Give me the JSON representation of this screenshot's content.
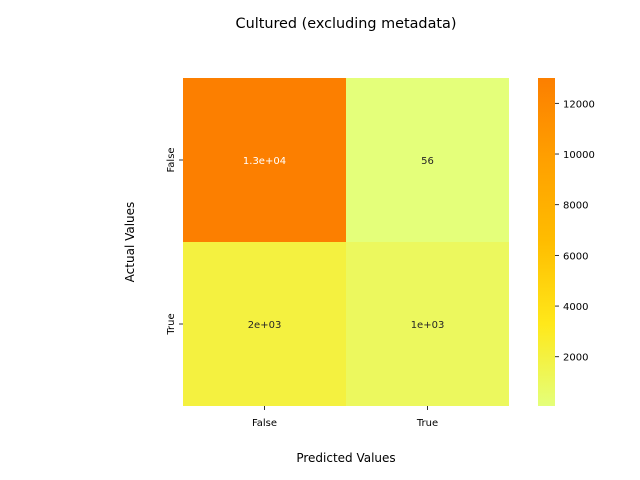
{
  "chart_data": {
    "type": "heatmap",
    "title": "Cultured (excluding metadata)",
    "xlabel": "Predicted Values",
    "ylabel": "Actual Values",
    "x_categories": [
      "False",
      "True"
    ],
    "y_categories": [
      "False",
      "True"
    ],
    "values": [
      [
        13000,
        56
      ],
      [
        2000,
        1000
      ]
    ],
    "annotations": [
      [
        "1.3e+04",
        "56"
      ],
      [
        "2e+03",
        "1e+03"
      ]
    ],
    "colormap": "Wistia",
    "colorbar": {
      "range": [
        56,
        13000
      ],
      "ticks": [
        2000,
        4000,
        6000,
        8000,
        10000,
        12000
      ],
      "tick_labels": [
        "2000",
        "4000",
        "6000",
        "8000",
        "10000",
        "12000"
      ],
      "colors": [
        "#e4ff7a",
        "#ffe81a",
        "#ffbd00",
        "#ffa000",
        "#fc7f00"
      ]
    },
    "grid": false
  }
}
